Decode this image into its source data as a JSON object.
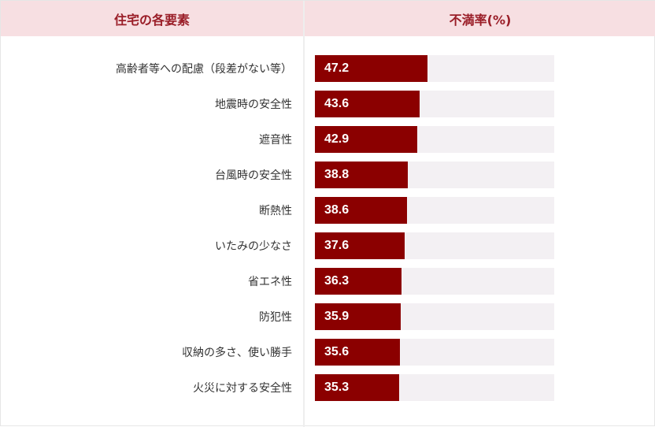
{
  "header": {
    "left_title": "住宅の各要素",
    "right_title": "不満率(%)"
  },
  "chart_data": {
    "type": "bar",
    "orientation": "horizontal",
    "xlim": [
      0,
      100
    ],
    "categories": [
      "高齢者等への配慮（段差がない等）",
      "地震時の安全性",
      "遮音性",
      "台風時の安全性",
      "断熱性",
      "いたみの少なさ",
      "省エネ性",
      "防犯性",
      "収納の多さ、使い勝手",
      "火災に対する安全性"
    ],
    "values": [
      47.2,
      43.6,
      42.9,
      38.8,
      38.6,
      37.6,
      36.3,
      35.9,
      35.6,
      35.3
    ],
    "value_labels": [
      "47.2",
      "43.6",
      "42.9",
      "38.8",
      "38.6",
      "37.6",
      "36.3",
      "35.9",
      "35.6",
      "35.3"
    ],
    "colors": {
      "bar": "#8b0000",
      "track": "#f3f0f3",
      "header_bg": "#f7dfe2",
      "header_text": "#9a1e28"
    }
  }
}
